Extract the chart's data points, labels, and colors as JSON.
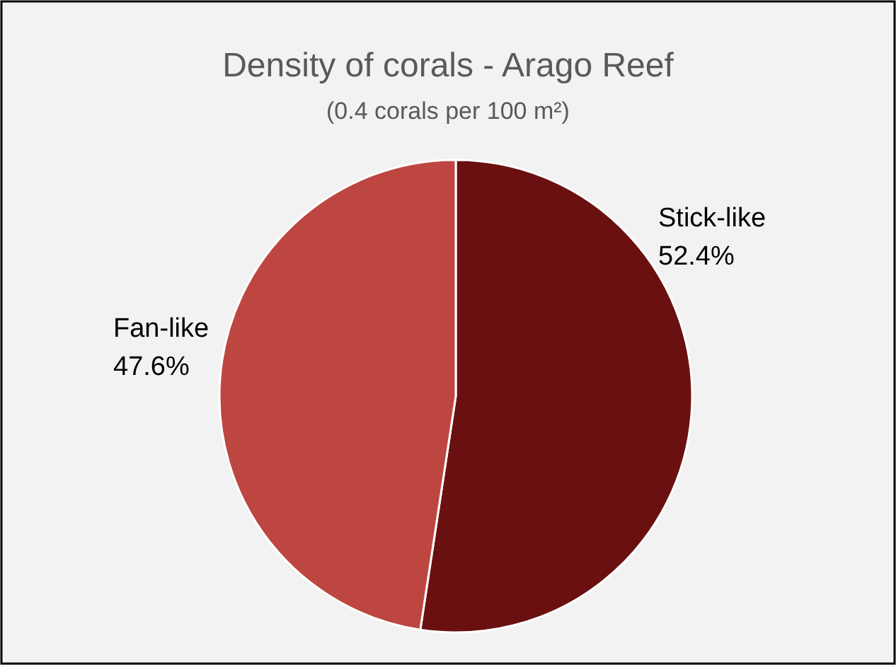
{
  "chart_data": {
    "type": "pie",
    "title": "Density of corals - Arago Reef",
    "subtitle": "(0.4 corals per 100 m²)",
    "categories": [
      "Stick-like",
      "Fan-like"
    ],
    "values": [
      52.4,
      47.6
    ],
    "colors": [
      "#6b1010",
      "#be4641"
    ],
    "value_labels": [
      "52.4%",
      "47.6%"
    ]
  }
}
